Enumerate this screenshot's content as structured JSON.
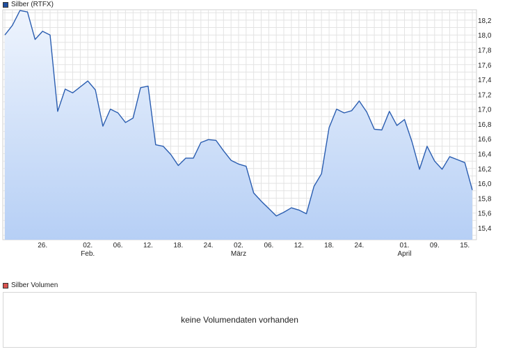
{
  "legend": {
    "price_label": "Silber (RTFX)",
    "price_color": "#1f4fa0",
    "volume_label": "Silber Volumen",
    "volume_color": "#d9534f"
  },
  "volume_panel": {
    "message": "keine Volumendaten vorhanden"
  },
  "chart_data": {
    "type": "area",
    "title": "",
    "xlabel": "",
    "ylabel": "",
    "ylim": [
      15.24,
      18.34
    ],
    "yticks": [
      "18,2",
      "18,0",
      "17,8",
      "17,6",
      "17,4",
      "17,2",
      "17,0",
      "16,8",
      "16,6",
      "16,4",
      "16,2",
      "16,0",
      "15,8",
      "15,6",
      "15,4"
    ],
    "ytick_values": [
      18.2,
      18.0,
      17.8,
      17.6,
      17.4,
      17.2,
      17.0,
      16.8,
      16.6,
      16.4,
      16.2,
      16.0,
      15.8,
      15.6,
      15.4
    ],
    "xticks": [
      {
        "label": "26.",
        "sub": "",
        "index": 5
      },
      {
        "label": "02.",
        "sub": "Feb.",
        "index": 11
      },
      {
        "label": "06.",
        "sub": "",
        "index": 15
      },
      {
        "label": "12.",
        "sub": "",
        "index": 19
      },
      {
        "label": "18.",
        "sub": "",
        "index": 23
      },
      {
        "label": "24.",
        "sub": "",
        "index": 27
      },
      {
        "label": "02.",
        "sub": "März",
        "index": 31
      },
      {
        "label": "06.",
        "sub": "",
        "index": 35
      },
      {
        "label": "12.",
        "sub": "",
        "index": 39
      },
      {
        "label": "18.",
        "sub": "",
        "index": 43
      },
      {
        "label": "24.",
        "sub": "",
        "index": 47
      },
      {
        "label": "01.",
        "sub": "April",
        "index": 53
      },
      {
        "label": "09.",
        "sub": "",
        "index": 57
      },
      {
        "label": "15.",
        "sub": "",
        "index": 61
      }
    ],
    "series": [
      {
        "name": "Silber (RTFX)",
        "color": "#2a5db0",
        "values": [
          18.0,
          18.13,
          18.33,
          18.31,
          17.94,
          18.05,
          18.0,
          16.97,
          17.27,
          17.22,
          17.3,
          17.38,
          17.26,
          16.77,
          17.0,
          16.95,
          16.82,
          16.88,
          17.29,
          17.31,
          16.52,
          16.5,
          16.39,
          16.24,
          16.34,
          16.34,
          16.55,
          16.59,
          16.58,
          16.44,
          16.31,
          16.26,
          16.23,
          15.87,
          15.76,
          15.66,
          15.56,
          15.61,
          15.67,
          15.64,
          15.59,
          15.96,
          16.13,
          16.75,
          17.0,
          16.95,
          16.98,
          17.11,
          16.96,
          16.73,
          16.72,
          16.97,
          16.78,
          16.86,
          16.56,
          16.19,
          16.5,
          16.3,
          16.19,
          16.36,
          16.32,
          16.28,
          15.91
        ]
      }
    ],
    "grid": true,
    "legend_position": "top-left"
  }
}
